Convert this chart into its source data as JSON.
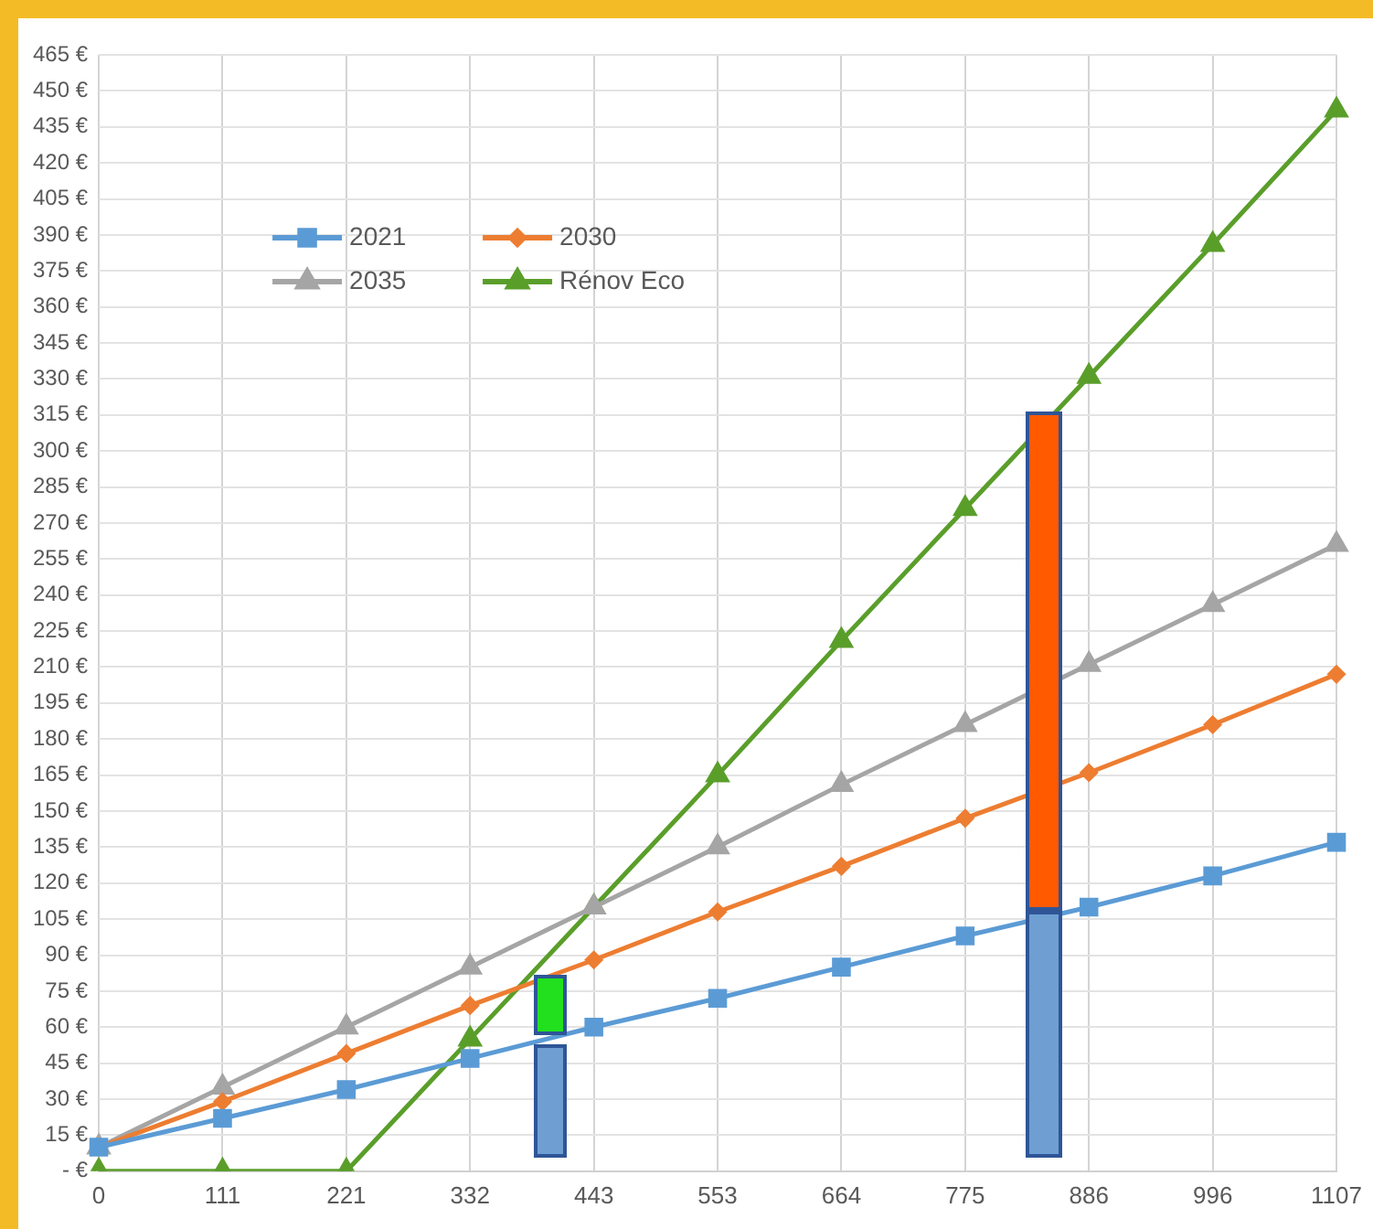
{
  "chart_data": {
    "type": "line",
    "categories": [
      "0",
      "111",
      "221",
      "332",
      "443",
      "553",
      "664",
      "775",
      "886",
      "996",
      "1107"
    ],
    "series": [
      {
        "name": "2021",
        "color": "#5b9bd5",
        "marker": "square",
        "values": [
          10,
          22,
          34,
          47,
          60,
          72,
          85,
          98,
          110,
          123,
          137
        ]
      },
      {
        "name": "2030",
        "color": "#ed7d31",
        "marker": "diamond",
        "values": [
          10,
          29,
          49,
          69,
          88,
          108,
          127,
          147,
          166,
          186,
          207
        ]
      },
      {
        "name": "2035",
        "color": "#a5a5a5",
        "marker": "triangle",
        "values": [
          10,
          35,
          60,
          85,
          110,
          135,
          161,
          186,
          211,
          236,
          261
        ]
      },
      {
        "name": "Rénov Eco",
        "color": "#5a9e2a",
        "marker": "triangle",
        "values": [
          0,
          0,
          0,
          55,
          110,
          165,
          221,
          276,
          331,
          386,
          442
        ]
      }
    ],
    "ylim": [
      0,
      465
    ],
    "yticks": [
      {
        "value": 0,
        "label": "- €"
      },
      {
        "value": 15,
        "label": "15 €"
      },
      {
        "value": 30,
        "label": "30 €"
      },
      {
        "value": 45,
        "label": "45 €"
      },
      {
        "value": 60,
        "label": "60 €"
      },
      {
        "value": 75,
        "label": "75 €"
      },
      {
        "value": 90,
        "label": "90 €"
      },
      {
        "value": 105,
        "label": "105 €"
      },
      {
        "value": 120,
        "label": "120 €"
      },
      {
        "value": 135,
        "label": "135 €"
      },
      {
        "value": 150,
        "label": "150 €"
      },
      {
        "value": 165,
        "label": "165 €"
      },
      {
        "value": 180,
        "label": "180 €"
      },
      {
        "value": 195,
        "label": "195 €"
      },
      {
        "value": 210,
        "label": "210 €"
      },
      {
        "value": 225,
        "label": "225 €"
      },
      {
        "value": 240,
        "label": "240 €"
      },
      {
        "value": 255,
        "label": "255 €"
      },
      {
        "value": 270,
        "label": "270 €"
      },
      {
        "value": 285,
        "label": "285 €"
      },
      {
        "value": 300,
        "label": "300 €"
      },
      {
        "value": 315,
        "label": "315 €"
      },
      {
        "value": 330,
        "label": "330 €"
      },
      {
        "value": 345,
        "label": "345 €"
      },
      {
        "value": 360,
        "label": "360 €"
      },
      {
        "value": 375,
        "label": "375 €"
      },
      {
        "value": 390,
        "label": "390 €"
      },
      {
        "value": 405,
        "label": "405 €"
      },
      {
        "value": 420,
        "label": "420 €"
      },
      {
        "value": 435,
        "label": "435 €"
      },
      {
        "value": 450,
        "label": "450 €"
      },
      {
        "value": 465,
        "label": "465 €"
      }
    ],
    "grid": true,
    "legend": "top left"
  }
}
